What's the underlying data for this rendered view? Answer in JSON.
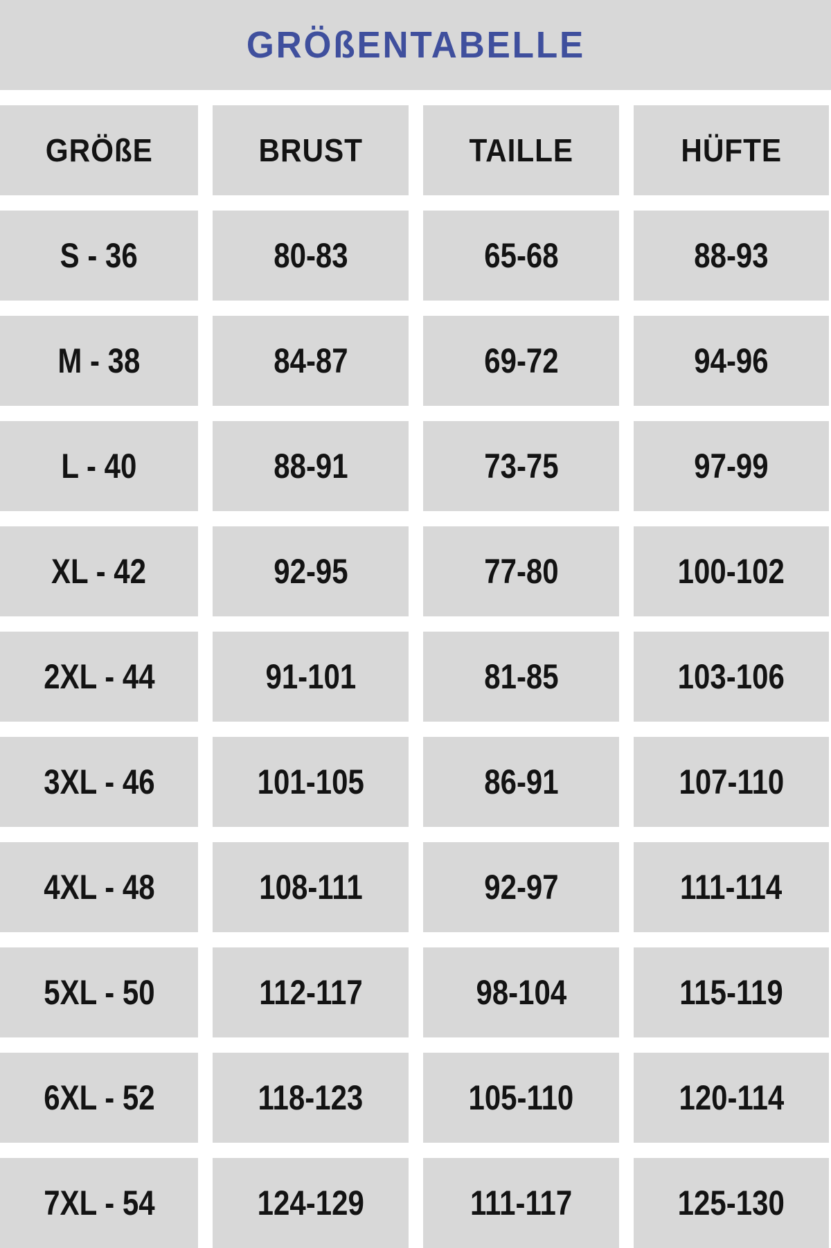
{
  "title": "GRÖßENTABELLE",
  "colors": {
    "title_blue": "#3f4f9d",
    "cell_grey": "#d8d8d8",
    "gap_white": "#ffffff",
    "text_black": "#131313"
  },
  "table": {
    "headers": [
      "GRÖßE",
      "BRUST",
      "TAILLE",
      "HÜFTE"
    ],
    "rows": [
      [
        "S - 36",
        "80-83",
        "65-68",
        "88-93"
      ],
      [
        "M - 38",
        "84-87",
        "69-72",
        "94-96"
      ],
      [
        "L - 40",
        "88-91",
        "73-75",
        "97-99"
      ],
      [
        "XL - 42",
        "92-95",
        "77-80",
        "100-102"
      ],
      [
        "2XL - 44",
        "91-101",
        "81-85",
        "103-106"
      ],
      [
        "3XL - 46",
        "101-105",
        "86-91",
        "107-110"
      ],
      [
        "4XL - 48",
        "108-111",
        "92-97",
        "111-114"
      ],
      [
        "5XL - 50",
        "112-117",
        "98-104",
        "115-119"
      ],
      [
        "6XL - 52",
        "118-123",
        "105-110",
        "120-114"
      ],
      [
        "7XL - 54",
        "124-129",
        "111-117",
        "125-130"
      ]
    ]
  }
}
